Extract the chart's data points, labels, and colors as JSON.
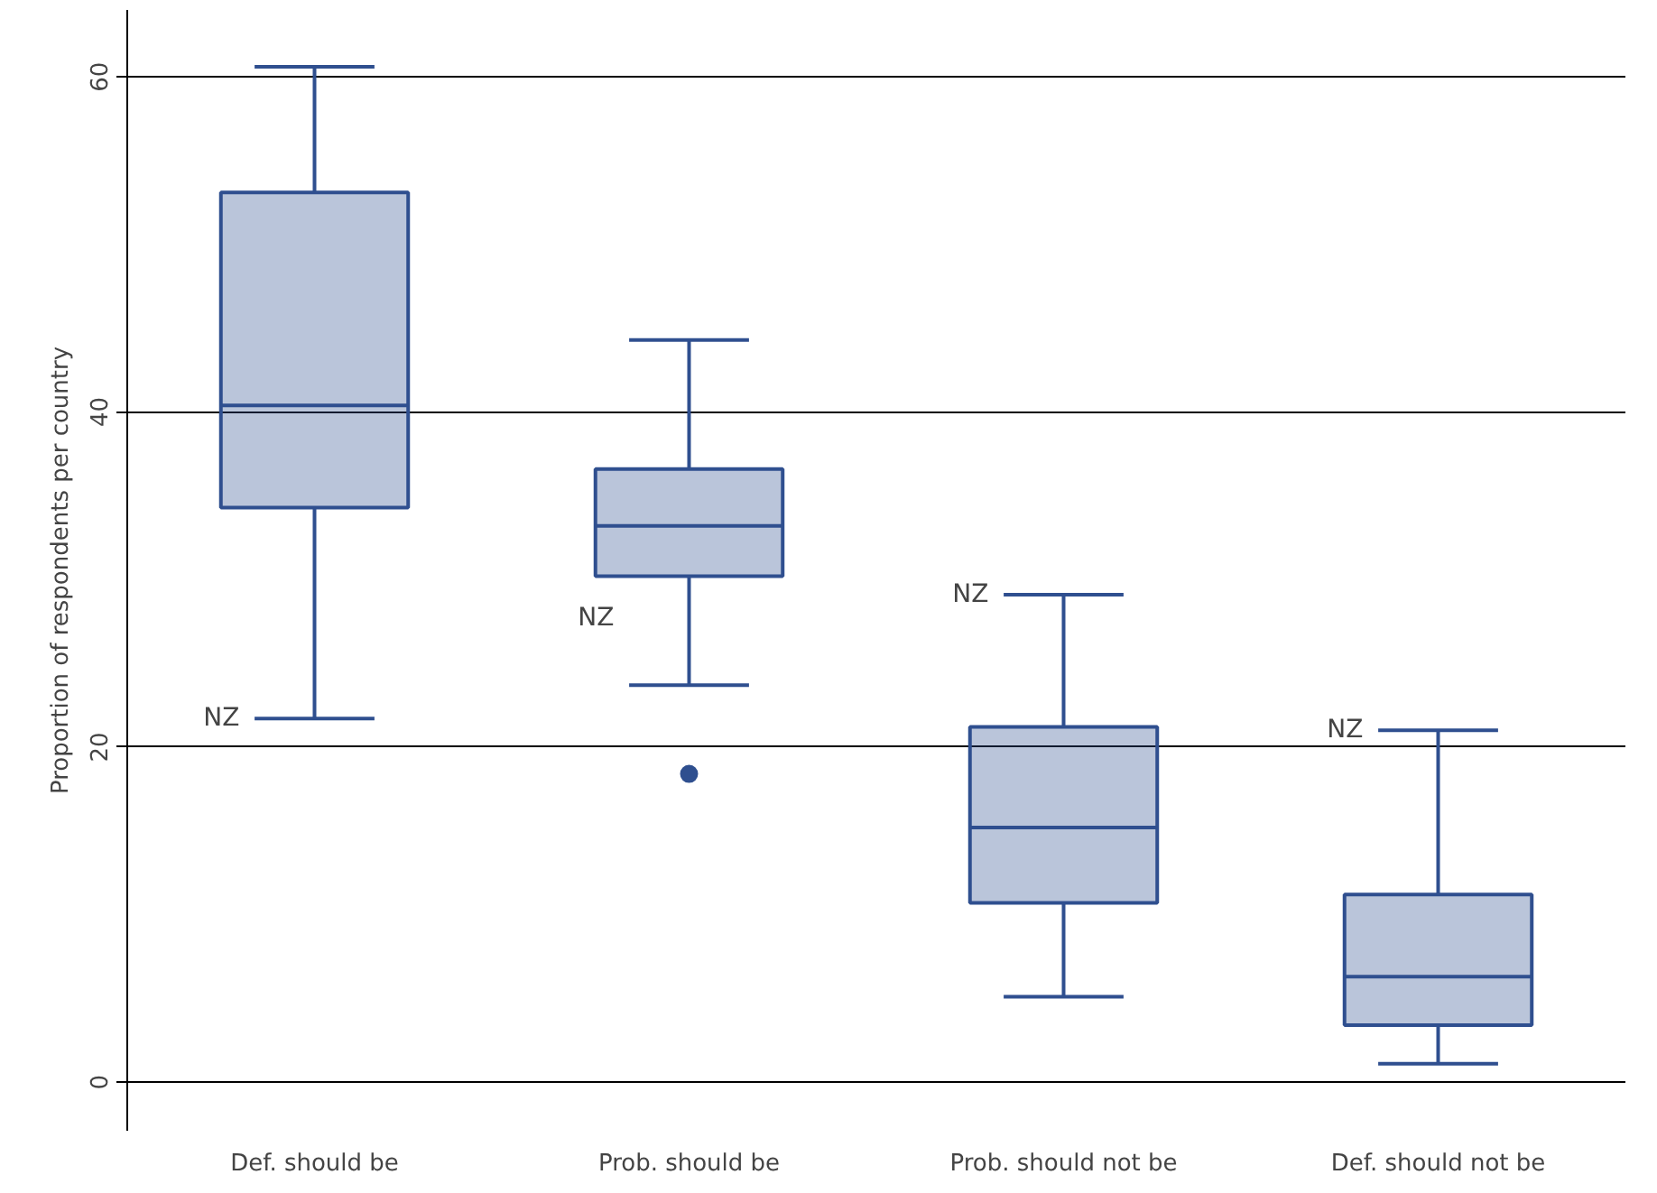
{
  "chart_data": {
    "type": "box",
    "ylabel": "Proportion of respondents per country",
    "categories": [
      "Def. should be",
      "Prob. should be",
      "Prob. should not be",
      "Def. should not be"
    ],
    "series": [
      {
        "color": "#2f4f8f",
        "boxes": [
          {
            "low": 21.7,
            "q1": 34.3,
            "median": 40.4,
            "q3": 53.1,
            "high": 60.6
          },
          {
            "low": 23.7,
            "q1": 30.2,
            "median": 33.2,
            "q3": 36.6,
            "high": 44.3,
            "outliers": [
              18.4
            ]
          },
          {
            "low": 5.1,
            "q1": 10.7,
            "median": 15.2,
            "q3": 21.2,
            "high": 29.1
          },
          {
            "low": 1.1,
            "q1": 3.4,
            "median": 6.3,
            "q3": 11.2,
            "high": 21.0
          }
        ]
      }
    ],
    "annotations": [
      {
        "text": "NZ",
        "x": "Def. should be",
        "y": 21.7
      },
      {
        "text": "NZ",
        "x": "Prob. should be",
        "y": 27.7
      },
      {
        "text": "NZ",
        "x": "Prob. should not be",
        "y": 29.1
      },
      {
        "text": "NZ",
        "x": "Def. should not be",
        "y": 21.0
      }
    ],
    "ylim": [
      -2.9,
      64
    ],
    "yticks": [
      0,
      20,
      40,
      60
    ],
    "grid": "y"
  }
}
